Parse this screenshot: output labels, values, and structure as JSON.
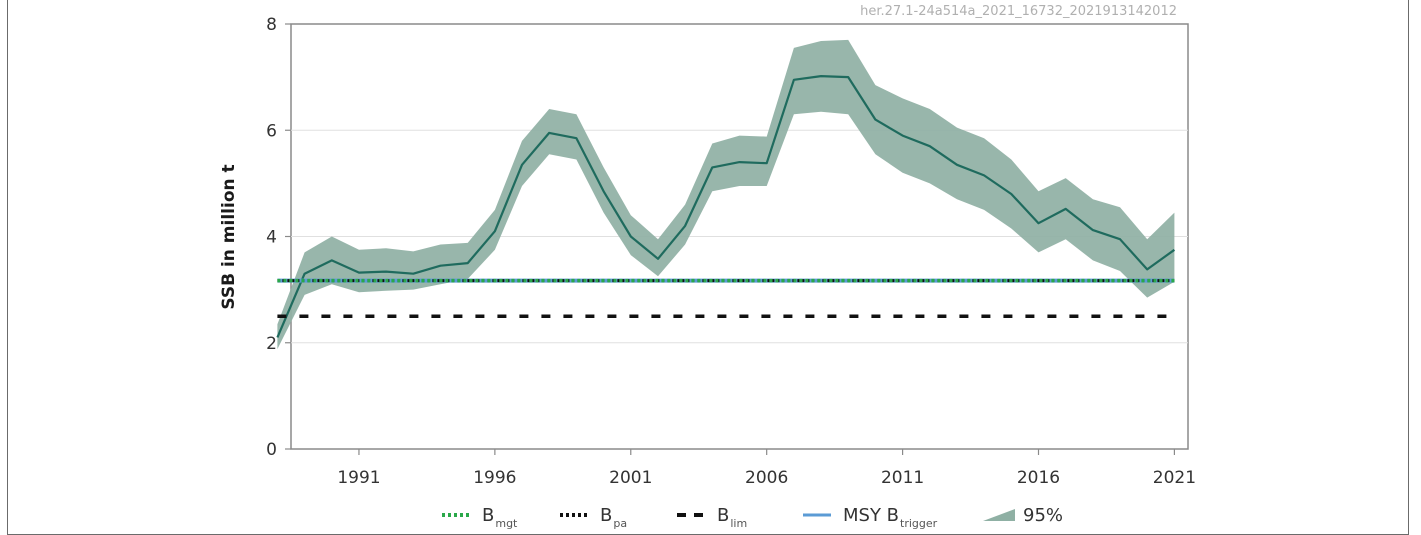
{
  "watermark": "her.27.1-24a514a_2021_16732_2021913142012",
  "chart_data": {
    "type": "line",
    "title": "",
    "xlabel": "",
    "ylabel": "SSB in million t",
    "xlim": [
      1988.5,
      2021.5
    ],
    "ylim": [
      0,
      8
    ],
    "xticks": [
      1991,
      1996,
      2001,
      2006,
      2011,
      2016,
      2021
    ],
    "yticks": [
      0,
      2,
      4,
      6,
      8
    ],
    "grid": "horizontal",
    "legend_position": "bottom",
    "colors": {
      "ssb": "#1f6b5e",
      "band": "#8fb0a4",
      "blim": "#111111",
      "bpa": "#111111",
      "bmgt": "#2aa84a",
      "msy": "#5b9bd5"
    },
    "series": [
      {
        "name": "SSB",
        "x": [
          1988,
          1989,
          1990,
          1991,
          1992,
          1993,
          1994,
          1995,
          1996,
          1997,
          1998,
          1999,
          2000,
          2001,
          2002,
          2003,
          2004,
          2005,
          2006,
          2007,
          2008,
          2009,
          2010,
          2011,
          2012,
          2013,
          2014,
          2015,
          2016,
          2017,
          2018,
          2019,
          2020,
          2021
        ],
        "y": [
          2.1,
          3.3,
          3.55,
          3.32,
          3.34,
          3.3,
          3.45,
          3.5,
          4.1,
          5.35,
          5.95,
          5.85,
          4.85,
          4.0,
          3.58,
          4.2,
          5.3,
          5.4,
          5.38,
          6.95,
          7.02,
          7.0,
          6.2,
          5.9,
          5.7,
          5.35,
          5.15,
          4.8,
          4.25,
          4.52,
          4.12,
          3.95,
          3.38,
          3.75
        ],
        "lower": [
          1.88,
          2.9,
          3.1,
          2.95,
          2.98,
          3.0,
          3.1,
          3.2,
          3.75,
          4.95,
          5.55,
          5.45,
          4.45,
          3.65,
          3.25,
          3.85,
          4.85,
          4.95,
          4.95,
          6.3,
          6.35,
          6.3,
          5.55,
          5.2,
          5.0,
          4.7,
          4.5,
          4.15,
          3.7,
          3.95,
          3.55,
          3.35,
          2.85,
          3.15
        ],
        "upper": [
          2.35,
          3.7,
          4.0,
          3.75,
          3.78,
          3.72,
          3.85,
          3.88,
          4.5,
          5.8,
          6.4,
          6.3,
          5.3,
          4.4,
          3.95,
          4.6,
          5.75,
          5.9,
          5.88,
          7.55,
          7.68,
          7.7,
          6.85,
          6.6,
          6.4,
          6.05,
          5.85,
          5.45,
          4.85,
          5.1,
          4.7,
          4.55,
          3.95,
          4.45
        ]
      }
    ],
    "reference_lines": {
      "blim": 2.5,
      "bpa": 3.17,
      "bmgt": 3.17,
      "msy_btrigger": 3.17
    },
    "legend": [
      {
        "key": "bmgt",
        "label": "B",
        "sub": "mgt"
      },
      {
        "key": "bpa",
        "label": "B",
        "sub": "pa"
      },
      {
        "key": "blim",
        "label": "B",
        "sub": "lim"
      },
      {
        "key": "msy",
        "label": "MSY B",
        "sub": "trigger"
      },
      {
        "key": "band",
        "label": "95%",
        "sub": ""
      }
    ]
  }
}
